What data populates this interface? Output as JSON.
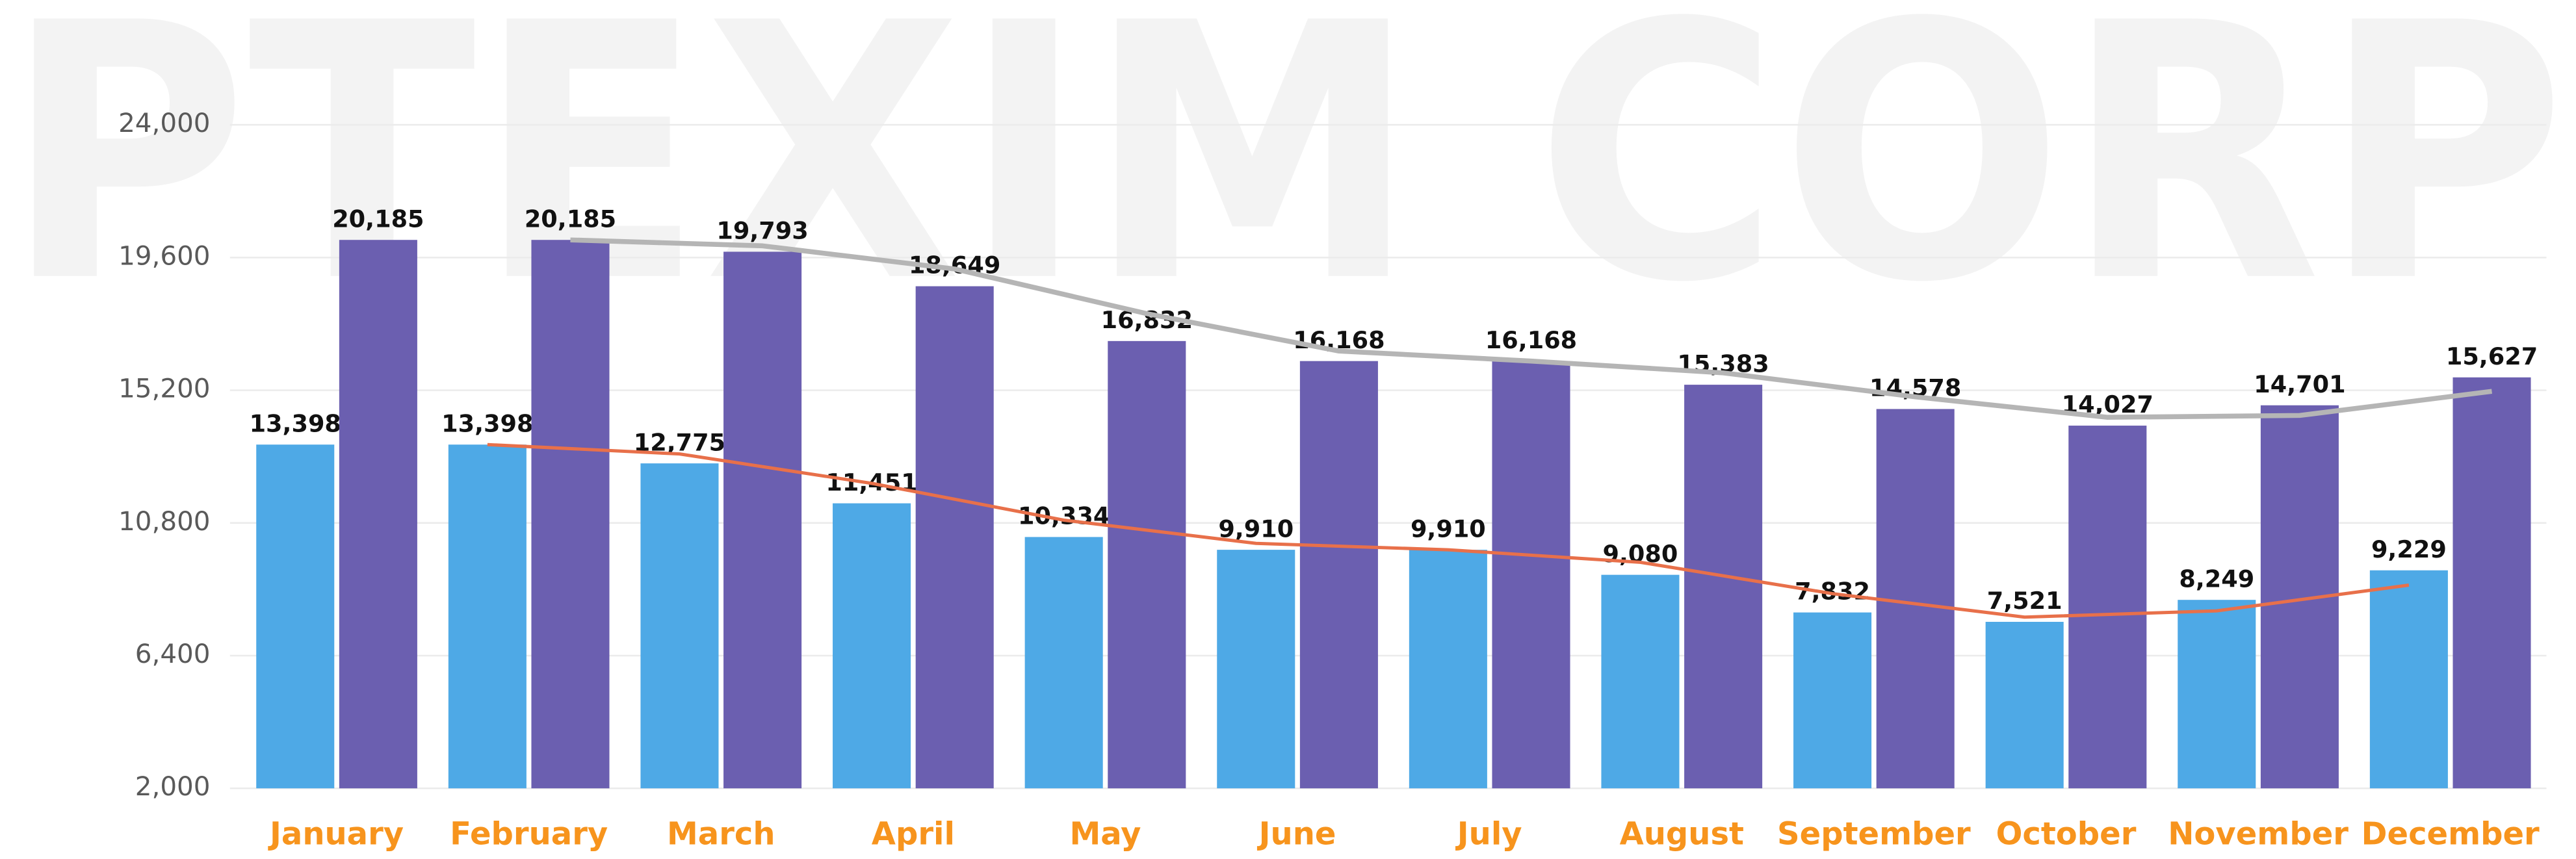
{
  "chart_data": {
    "type": "bar",
    "watermark": "PTEXIM CORP",
    "categories": [
      "January",
      "February",
      "March",
      "April",
      "May",
      "June",
      "July",
      "August",
      "September",
      "October",
      "November",
      "December"
    ],
    "series": [
      {
        "color": "#4ea9e6",
        "values": [
          13398,
          13398,
          12775,
          11451,
          10334,
          9910,
          9910,
          9080,
          7832,
          7521,
          8249,
          9229
        ],
        "value_labels": [
          "13,398",
          "13,398",
          "12,775",
          "11,451",
          "10,334",
          "9,910",
          "9,910",
          "9,080",
          "7,832",
          "7,521",
          "8,249",
          "9,229"
        ]
      },
      {
        "color": "#6b5fb0",
        "values": [
          20185,
          20185,
          19793,
          18649,
          16832,
          16168,
          16168,
          15383,
          14578,
          14027,
          14701,
          15627
        ],
        "value_labels": [
          "20,185",
          "20,185",
          "19,793",
          "18,649",
          "16,832",
          "16,168",
          "16,168",
          "15,383",
          "14,578",
          "14,027",
          "14,701",
          "15,627"
        ]
      }
    ],
    "trendlines": [
      {
        "color": "#e8704a",
        "values": [
          null,
          13398,
          13087,
          12113,
          10893,
          10122,
          9910,
          9495,
          8456,
          7677,
          7885,
          8739
        ]
      },
      {
        "color": "#b5b5b5",
        "values": [
          null,
          20185,
          19989,
          19221,
          17741,
          16500,
          16168,
          15776,
          14981,
          14303,
          14364,
          15164
        ]
      }
    ],
    "ylim": [
      2000,
      24000
    ],
    "yticks": [
      {
        "value": 2000,
        "label": "2,000"
      },
      {
        "value": 6400,
        "label": "6,400"
      },
      {
        "value": 10800,
        "label": "10,800"
      },
      {
        "value": 15200,
        "label": "15,200"
      },
      {
        "value": 19600,
        "label": "19,600"
      },
      {
        "value": 24000,
        "label": "24,000"
      }
    ],
    "grid": true
  }
}
